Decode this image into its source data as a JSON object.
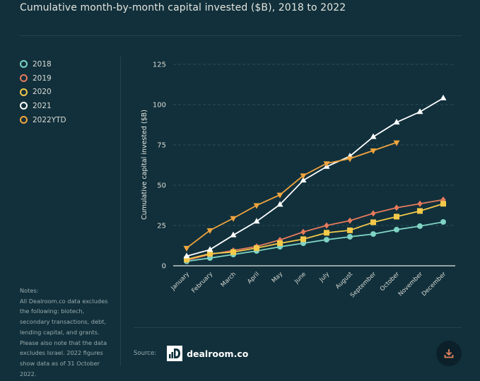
{
  "header": {
    "title": "Cumulative month-by-month capital invested ($B), 2018 to 2022"
  },
  "legend": [
    {
      "label": "2018",
      "color": "#7fd3c4"
    },
    {
      "label": "2019",
      "color": "#e77a5c"
    },
    {
      "label": "2020",
      "color": "#f4c94a"
    },
    {
      "label": "2021",
      "color": "#ffffff"
    },
    {
      "label": "2022YTD",
      "color": "#f2a53f"
    }
  ],
  "notes": {
    "heading": "Notes:",
    "body": "All Dealroom.co data excludes the following: biotech, secondary transactions, debt, lending capital, and grants. Please also note that the data excludes Israel. 2022 figures show data as of 31 October 2022."
  },
  "footer": {
    "source_label": "Source:",
    "source_name": "dealroom.co",
    "download_icon": "download-icon"
  },
  "chart_data": {
    "type": "line",
    "title": "Cumulative month-by-month capital invested ($B), 2018 to 2022",
    "xlabel": "",
    "ylabel": "Cumulative capital invested ($B)",
    "ylim": [
      0,
      125
    ],
    "yticks": [
      0,
      25,
      50,
      75,
      100,
      125
    ],
    "grid": true,
    "legend_position": "left",
    "categories": [
      "January",
      "February",
      "March",
      "April",
      "May",
      "June",
      "July",
      "August",
      "September",
      "October",
      "November",
      "December"
    ],
    "series": [
      {
        "name": "2018",
        "color": "#7fd3c4",
        "marker": "circle",
        "values": [
          2.8,
          4.8,
          7,
          9.2,
          11.8,
          14,
          16.2,
          18,
          19.7,
          22.4,
          24.6,
          27.2
        ]
      },
      {
        "name": "2019",
        "color": "#e77a5c",
        "marker": "diamond",
        "values": [
          3.5,
          7,
          9.5,
          12,
          16,
          21,
          25,
          28,
          32.5,
          36,
          38.5,
          41
        ]
      },
      {
        "name": "2020",
        "color": "#f4c94a",
        "marker": "square",
        "values": [
          4,
          7.5,
          8.5,
          11,
          14,
          16.5,
          20.5,
          22,
          27,
          30.5,
          34,
          38.5
        ]
      },
      {
        "name": "2021",
        "color": "#ffffff",
        "marker": "triangle-up",
        "values": [
          6,
          10,
          19,
          27.5,
          38,
          53,
          61.5,
          68,
          80,
          89,
          95.5,
          104
        ]
      },
      {
        "name": "2022YTD",
        "color": "#f2a53f",
        "marker": "triangle-down",
        "values": [
          11,
          22,
          29.5,
          37.5,
          44,
          56,
          63.5,
          66.5,
          71.5,
          76.5
        ]
      }
    ]
  }
}
